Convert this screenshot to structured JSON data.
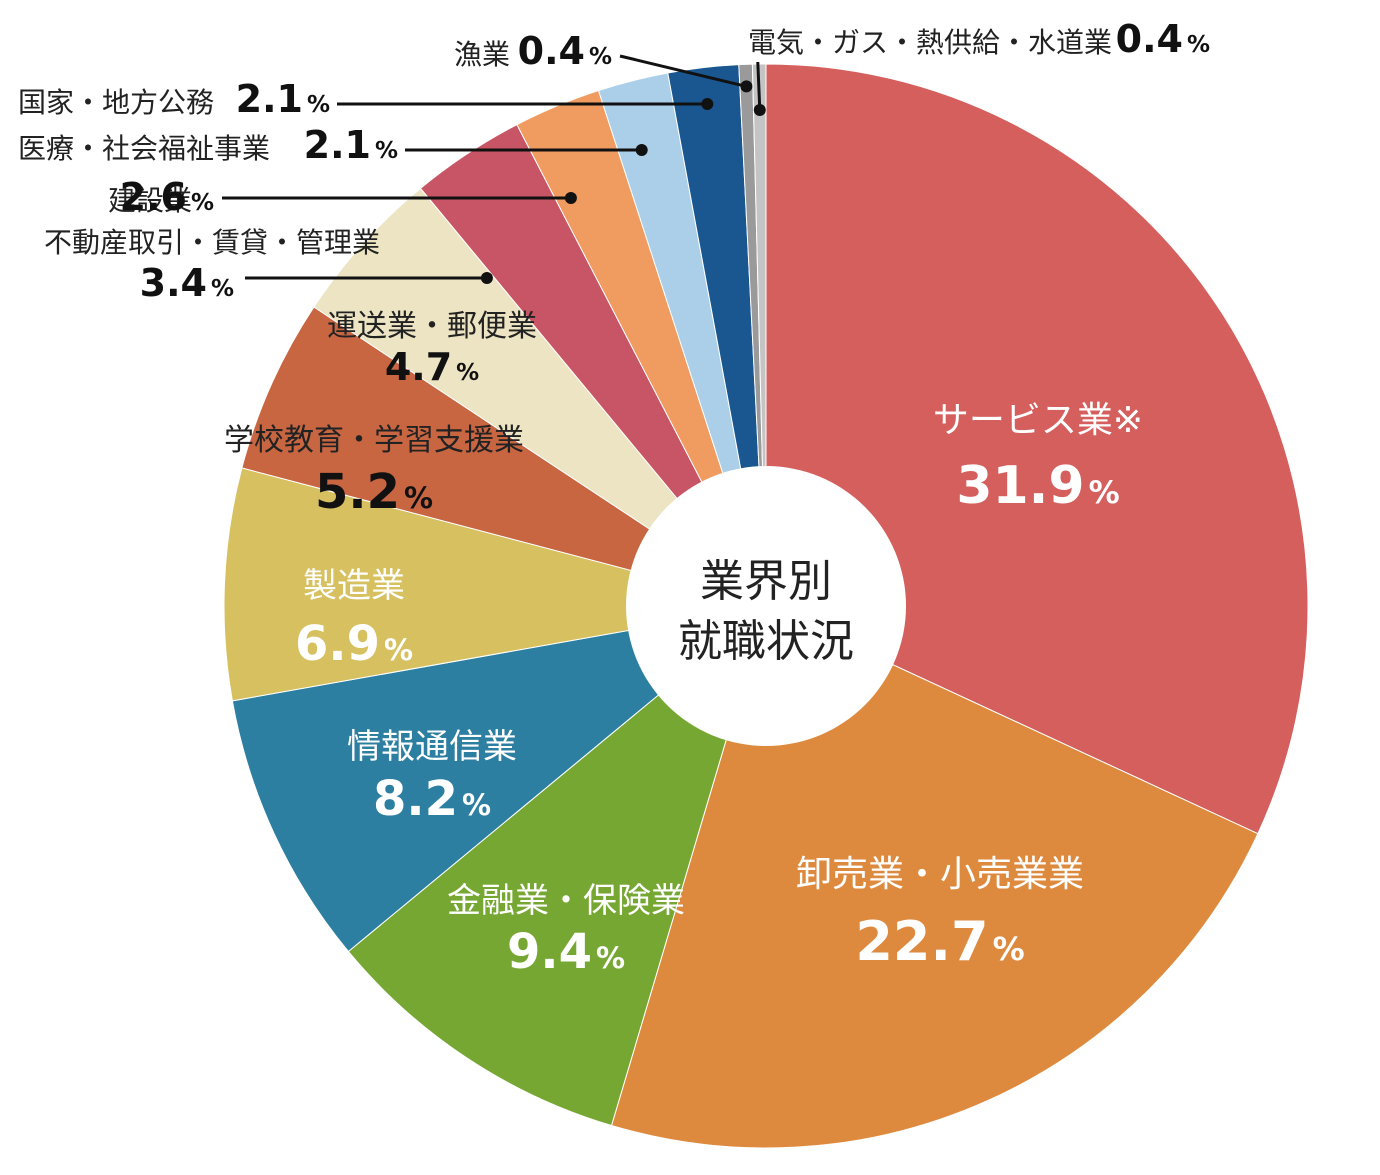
{
  "chart_data": {
    "type": "pie",
    "center_label": [
      "業界別",
      "就職状況"
    ],
    "slices": [
      {
        "name": "サービス業※",
        "value": 31.9,
        "value_text": "31.9",
        "unit": "%",
        "color": "#d45f5d"
      },
      {
        "name": "卸売業・小売業業",
        "value": 22.7,
        "value_text": "22.7",
        "unit": "%",
        "color": "#de8a3e"
      },
      {
        "name": "金融業・保険業",
        "value": 9.4,
        "value_text": "9.4",
        "unit": "%",
        "color": "#76a733"
      },
      {
        "name": "情報通信業",
        "value": 8.2,
        "value_text": "8.2",
        "unit": "%",
        "color": "#2c7fa0"
      },
      {
        "name": "製造業",
        "value": 6.9,
        "value_text": "6.9",
        "unit": "%",
        "color": "#d6c060"
      },
      {
        "name": "学校教育・学習支援業",
        "value": 5.2,
        "value_text": "5.2",
        "unit": "%",
        "color": "#c86642"
      },
      {
        "name": "運送業・郵便業",
        "value": 4.7,
        "value_text": "4.7",
        "unit": "%",
        "color": "#ece4c2"
      },
      {
        "name": "不動産取引・賃貸・管理業",
        "value": 3.4,
        "value_text": "3.4",
        "unit": "%",
        "color": "#c85565"
      },
      {
        "name": "建設業",
        "value": 2.6,
        "value_text": "2.6",
        "unit": "%",
        "color": "#f09b60"
      },
      {
        "name": "医療・社会福祉事業",
        "value": 2.1,
        "value_text": "2.1",
        "unit": "%",
        "color": "#abcfe9"
      },
      {
        "name": "国家・地方公務",
        "value": 2.1,
        "value_text": "2.1",
        "unit": "%",
        "color": "#1a5690"
      },
      {
        "name": "漁業",
        "value": 0.4,
        "value_text": "0.4",
        "unit": "%",
        "color": "#9a9a9a"
      },
      {
        "name": "電気・ガス・熱供給・水道業",
        "value": 0.4,
        "value_text": "0.4",
        "unit": "%",
        "color": "#c4c4c4"
      }
    ]
  }
}
